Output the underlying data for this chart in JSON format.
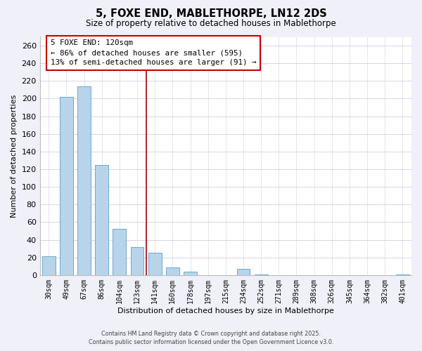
{
  "title": "5, FOXE END, MABLETHORPE, LN12 2DS",
  "subtitle": "Size of property relative to detached houses in Mablethorpe",
  "bar_labels": [
    "30sqm",
    "49sqm",
    "67sqm",
    "86sqm",
    "104sqm",
    "123sqm",
    "141sqm",
    "160sqm",
    "178sqm",
    "197sqm",
    "215sqm",
    "234sqm",
    "252sqm",
    "271sqm",
    "289sqm",
    "308sqm",
    "326sqm",
    "345sqm",
    "364sqm",
    "382sqm",
    "401sqm"
  ],
  "bar_values": [
    21,
    202,
    214,
    125,
    52,
    32,
    25,
    9,
    4,
    0,
    0,
    7,
    1,
    0,
    0,
    0,
    0,
    0,
    0,
    0,
    1
  ],
  "bar_color": "#b8d4ea",
  "bar_edge_color": "#5a9ec9",
  "ylabel": "Number of detached properties",
  "xlabel": "Distribution of detached houses by size in Mablethorpe",
  "ylim": [
    0,
    270
  ],
  "yticks": [
    0,
    20,
    40,
    60,
    80,
    100,
    120,
    140,
    160,
    180,
    200,
    220,
    240,
    260
  ],
  "vline_x": 5.5,
  "vline_color": "#aa0000",
  "annotation_title": "5 FOXE END: 120sqm",
  "annotation_line1": "← 86% of detached houses are smaller (595)",
  "annotation_line2": "13% of semi-detached houses are larger (91) →",
  "footer_line1": "Contains HM Land Registry data © Crown copyright and database right 2025.",
  "footer_line2": "Contains public sector information licensed under the Open Government Licence v3.0.",
  "background_color": "#f0f0f8",
  "plot_bg_color": "#ffffff",
  "grid_color": "#d0d0e0",
  "annotation_border_color": "#cc0000",
  "bar_width": 0.75
}
